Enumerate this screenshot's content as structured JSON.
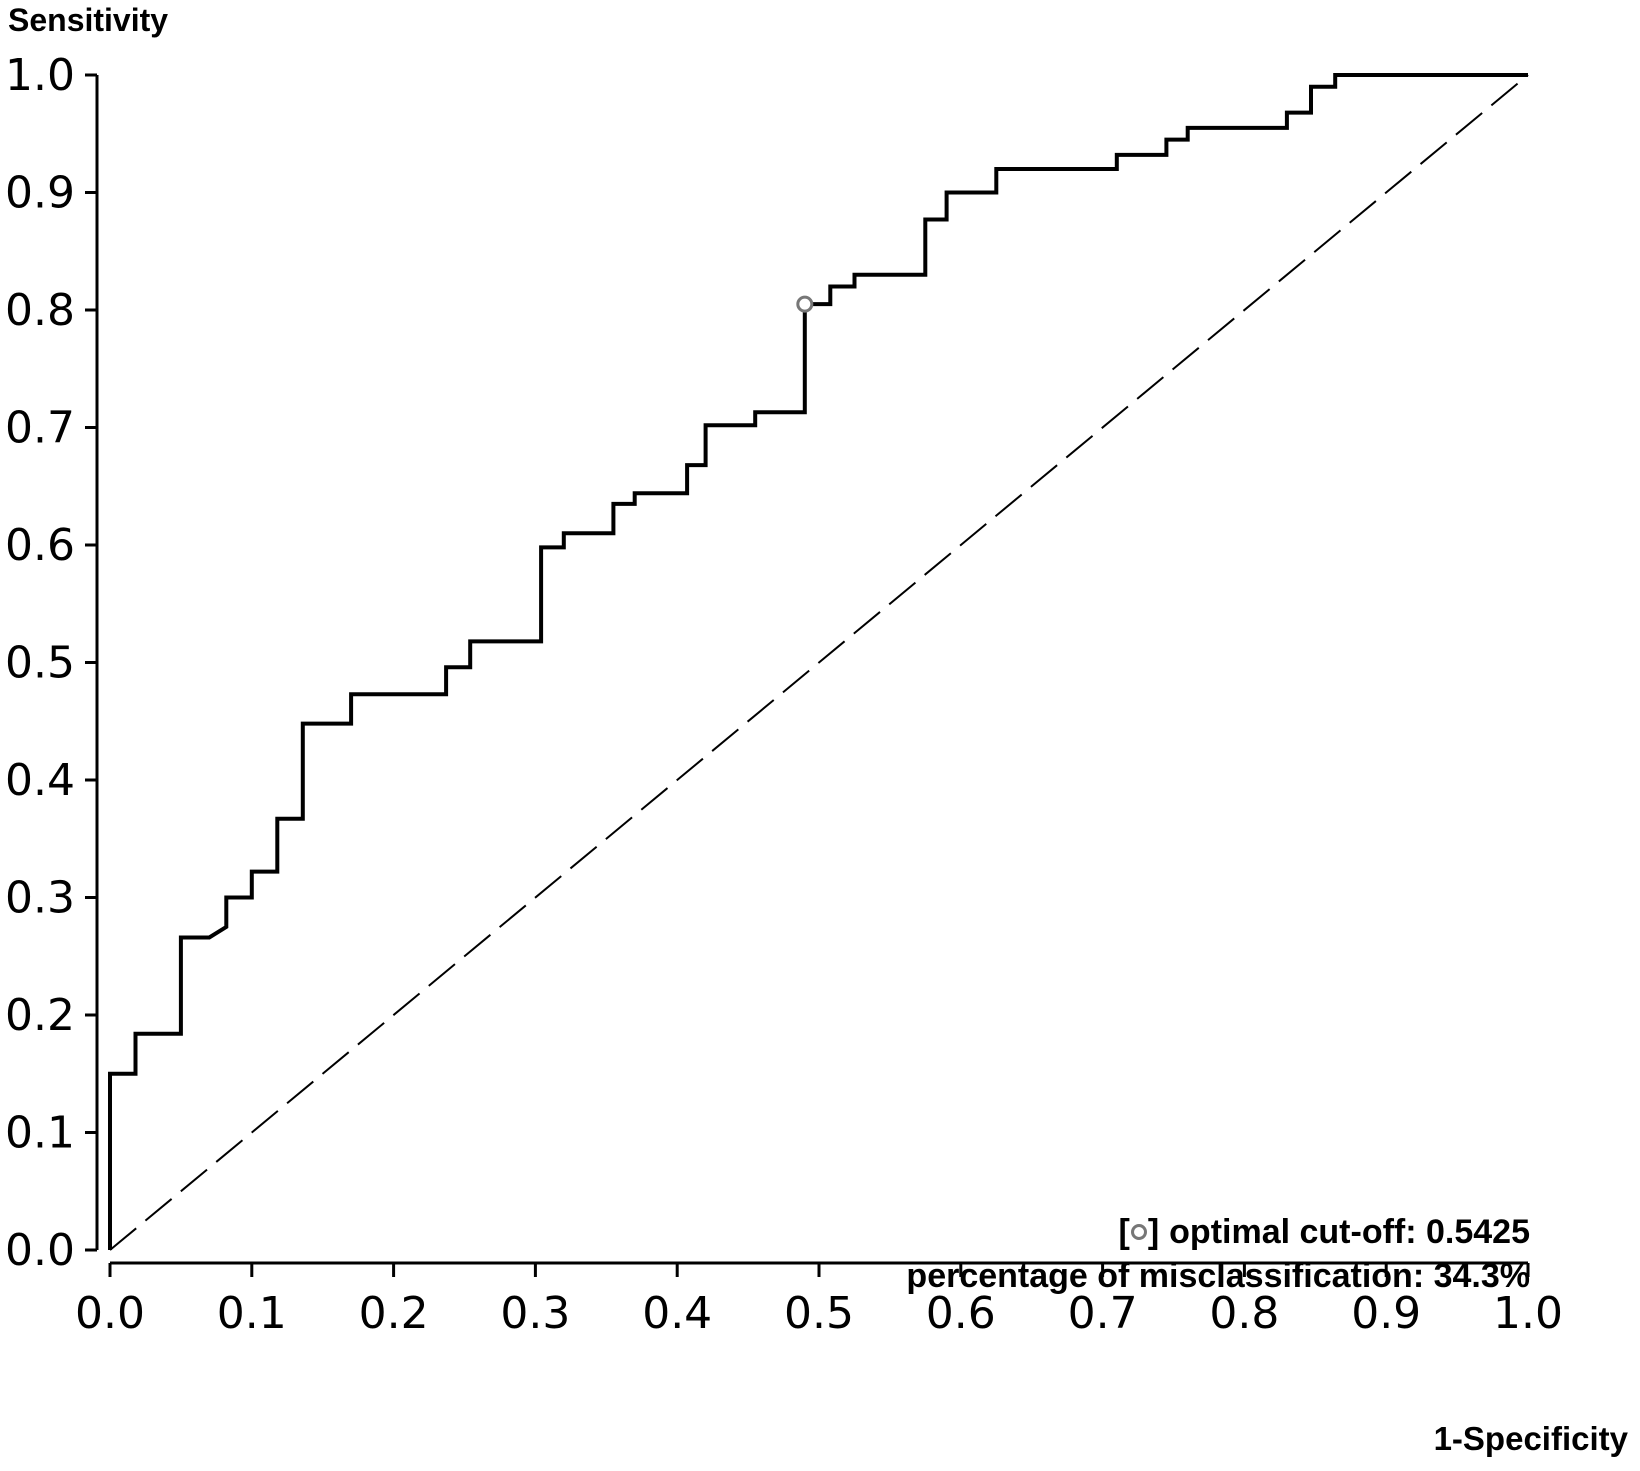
{
  "chart_data": {
    "type": "line",
    "ylabel": "Sensitivity",
    "xlabel": "1-Specificity",
    "xlim": [
      0.0,
      1.0
    ],
    "ylim": [
      0.0,
      1.0
    ],
    "x_ticks": [
      "0.0",
      "0.1",
      "0.2",
      "0.3",
      "0.4",
      "0.5",
      "0.6",
      "0.7",
      "0.8",
      "0.9",
      "1.0"
    ],
    "y_ticks": [
      "0.0",
      "0.1",
      "0.2",
      "0.3",
      "0.4",
      "0.5",
      "0.6",
      "0.7",
      "0.8",
      "0.9",
      "1.0"
    ],
    "grid": false,
    "series": [
      {
        "x": [
          0.0,
          0.0,
          0.018,
          0.018,
          0.05,
          0.05,
          0.07,
          0.082,
          0.082,
          0.1,
          0.1,
          0.118,
          0.118,
          0.136,
          0.136,
          0.17,
          0.17,
          0.237,
          0.237,
          0.254,
          0.254,
          0.304,
          0.304,
          0.32,
          0.32,
          0.355,
          0.355,
          0.37,
          0.37,
          0.407,
          0.407,
          0.42,
          0.42,
          0.455,
          0.455,
          0.49,
          0.49,
          0.508,
          0.508,
          0.525,
          0.525,
          0.575,
          0.575,
          0.59,
          0.59,
          0.625,
          0.625,
          0.71,
          0.71,
          0.745,
          0.745,
          0.76,
          0.76,
          0.83,
          0.83,
          0.847,
          0.847,
          0.864,
          0.864,
          1.0
        ],
        "y": [
          0.0,
          0.15,
          0.15,
          0.184,
          0.184,
          0.266,
          0.266,
          0.275,
          0.3,
          0.3,
          0.322,
          0.322,
          0.367,
          0.367,
          0.448,
          0.448,
          0.473,
          0.473,
          0.496,
          0.496,
          0.518,
          0.518,
          0.598,
          0.598,
          0.61,
          0.61,
          0.635,
          0.635,
          0.644,
          0.644,
          0.668,
          0.668,
          0.702,
          0.702,
          0.713,
          0.713,
          0.805,
          0.805,
          0.82,
          0.82,
          0.83,
          0.83,
          0.877,
          0.877,
          0.9,
          0.9,
          0.92,
          0.92,
          0.932,
          0.932,
          0.945,
          0.945,
          0.955,
          0.955,
          0.968,
          0.968,
          0.99,
          0.99,
          1.0,
          1.0
        ]
      },
      {
        "x": [
          0.0,
          1.0
        ],
        "y": [
          0.0,
          1.0
        ],
        "style": "dashed"
      }
    ],
    "optimal_point": {
      "x": 0.49,
      "y": 0.805
    },
    "annotations": {
      "cutoff_open": "[",
      "cutoff_close": "]",
      "cutoff_text": "optimal cut-off: 0.5425",
      "misclassification_text": "percentage of misclassification: 34.3%"
    },
    "colors": {
      "roc_line": "#000000",
      "reference_line": "#000000",
      "marker": "#777777",
      "axis": "#000000"
    }
  }
}
